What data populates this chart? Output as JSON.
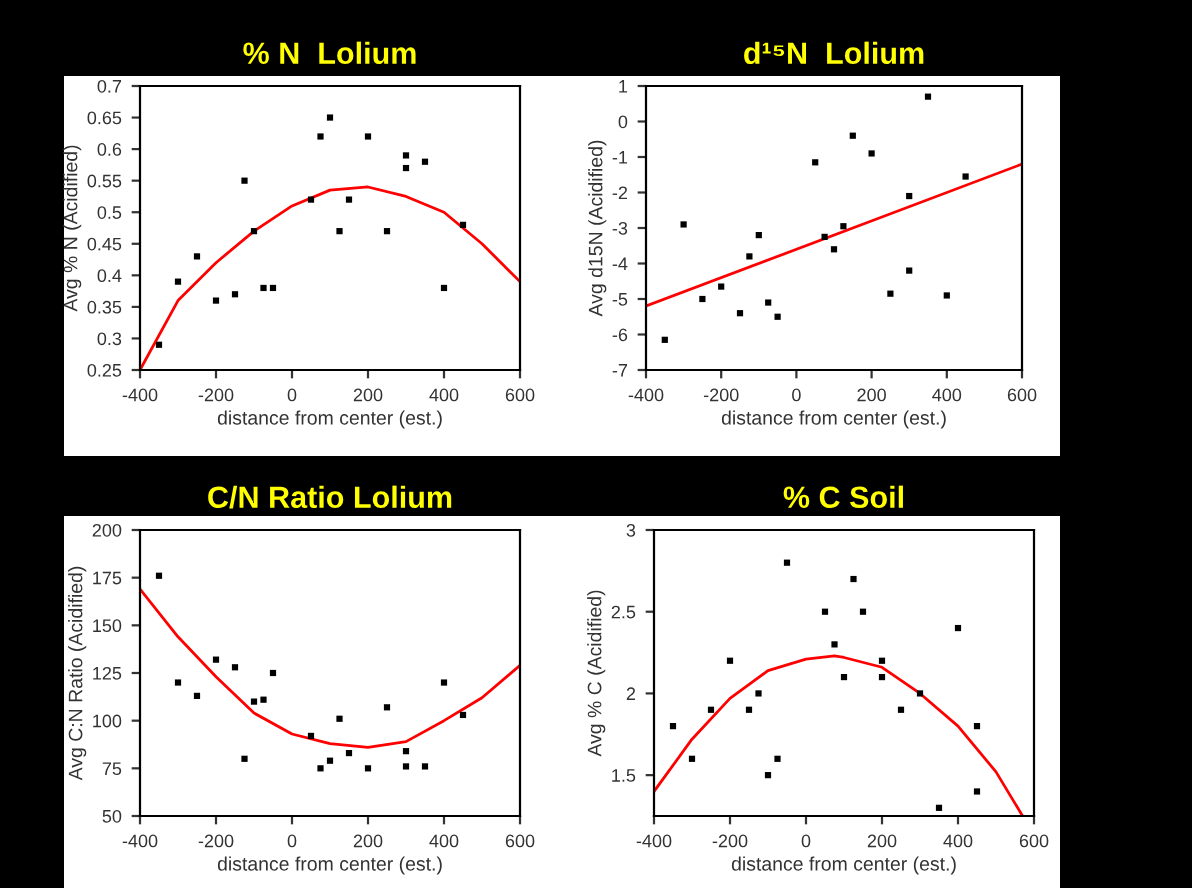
{
  "chart_data": [
    {
      "type": "scatter",
      "title": "% N  Lolium",
      "xlabel": "distance from center (est.)",
      "ylabel": "Avg % N (Acidified)",
      "xlim": [
        -400,
        600
      ],
      "xticks": [
        -400,
        -200,
        0,
        200,
        400,
        600
      ],
      "ylim": [
        0.25,
        0.7
      ],
      "yticks": [
        0.25,
        0.3,
        0.35,
        0.4,
        0.45,
        0.5,
        0.55,
        0.6,
        0.65,
        0.7
      ],
      "grid": false,
      "legend": false,
      "series": [
        {
          "marker": "square",
          "color": "#000000",
          "x": [
            -350,
            -300,
            -250,
            -200,
            -150,
            -125,
            -100,
            -75,
            -50,
            50,
            75,
            100,
            125,
            150,
            200,
            250,
            300,
            300,
            350,
            400,
            450
          ],
          "values": [
            0.29,
            0.39,
            0.43,
            0.36,
            0.37,
            0.55,
            0.47,
            0.38,
            0.38,
            0.52,
            0.62,
            0.65,
            0.47,
            0.52,
            0.62,
            0.47,
            0.59,
            0.57,
            0.58,
            0.38,
            0.48
          ]
        },
        {
          "type": "line",
          "marker": "none",
          "color": "#ff0000",
          "x": [
            -400,
            -300,
            -200,
            -100,
            0,
            100,
            200,
            300,
            400,
            500,
            600
          ],
          "values": [
            0.25,
            0.36,
            0.42,
            0.47,
            0.51,
            0.535,
            0.54,
            0.525,
            0.5,
            0.45,
            0.39
          ]
        }
      ]
    },
    {
      "type": "scatter",
      "title": "d¹⁵N  Lolium",
      "xlabel": "distance from center (est.)",
      "ylabel": "Avg d15N (Acidified)",
      "xlim": [
        -400,
        600
      ],
      "xticks": [
        -400,
        -200,
        0,
        200,
        400,
        600
      ],
      "ylim": [
        -7,
        1
      ],
      "yticks": [
        -7,
        -6,
        -5,
        -4,
        -3,
        -2,
        -1,
        0,
        1
      ],
      "grid": false,
      "legend": false,
      "series": [
        {
          "marker": "square",
          "color": "#000000",
          "x": [
            -350,
            -300,
            -250,
            -200,
            -150,
            -125,
            -100,
            -75,
            -50,
            50,
            75,
            100,
            125,
            150,
            200,
            250,
            300,
            300,
            350,
            400,
            450
          ],
          "values": [
            -6.15,
            -2.9,
            -5.0,
            -4.65,
            -5.4,
            -3.8,
            -3.2,
            -5.1,
            -5.5,
            -1.15,
            -3.25,
            -3.6,
            -2.95,
            -0.4,
            -0.9,
            -4.85,
            -2.1,
            -4.2,
            0.7,
            -4.9,
            -1.55
          ]
        },
        {
          "type": "line",
          "marker": "none",
          "color": "#ff0000",
          "x": [
            -400,
            600
          ],
          "values": [
            -5.2,
            -1.2
          ]
        }
      ]
    },
    {
      "type": "scatter",
      "title": "C/N Ratio Lolium",
      "xlabel": "distance from center (est.)",
      "ylabel": "Avg C:N Ratio (Acidified)",
      "xlim": [
        -400,
        600
      ],
      "xticks": [
        -400,
        -200,
        0,
        200,
        400,
        600
      ],
      "ylim": [
        50,
        200
      ],
      "yticks": [
        50,
        75,
        100,
        125,
        150,
        175,
        200
      ],
      "grid": false,
      "legend": false,
      "series": [
        {
          "marker": "square",
          "color": "#000000",
          "x": [
            -350,
            -300,
            -250,
            -200,
            -150,
            -125,
            -100,
            -75,
            -50,
            50,
            75,
            100,
            125,
            150,
            200,
            250,
            300,
            300,
            350,
            400,
            450
          ],
          "values": [
            176,
            120,
            113,
            132,
            128,
            80,
            110,
            111,
            125,
            92,
            75,
            79,
            101,
            83,
            75,
            107,
            84,
            76,
            76,
            120,
            103
          ]
        },
        {
          "type": "line",
          "marker": "none",
          "color": "#ff0000",
          "x": [
            -400,
            -300,
            -200,
            -100,
            0,
            100,
            200,
            300,
            400,
            500,
            600
          ],
          "values": [
            169,
            144,
            123,
            104,
            93,
            88,
            86,
            89,
            100,
            112,
            129
          ]
        }
      ]
    },
    {
      "type": "scatter",
      "title": "% C Soil",
      "xlabel": "distance from center (est.)",
      "ylabel": "Avg % C (Acidified)",
      "xlim": [
        -400,
        600
      ],
      "xticks": [
        -400,
        -200,
        0,
        200,
        400,
        600
      ],
      "ylim": [
        1.25,
        3
      ],
      "yticks": [
        1.5,
        2,
        2.5,
        3
      ],
      "grid": false,
      "legend": false,
      "series": [
        {
          "marker": "square",
          "color": "#000000",
          "x": [
            -350,
            -300,
            -250,
            -200,
            -150,
            -125,
            -100,
            -75,
            -50,
            50,
            75,
            100,
            125,
            150,
            200,
            200,
            250,
            300,
            350,
            400,
            450,
            450
          ],
          "values": [
            1.8,
            1.6,
            1.9,
            2.2,
            1.9,
            2.0,
            1.5,
            1.6,
            2.8,
            2.5,
            2.3,
            2.1,
            2.7,
            2.5,
            2.2,
            2.1,
            1.9,
            2.0,
            1.3,
            2.4,
            1.8,
            1.4
          ]
        },
        {
          "type": "line",
          "marker": "none",
          "color": "#ff0000",
          "x": [
            -400,
            -300,
            -200,
            -100,
            0,
            75,
            100,
            200,
            300,
            400,
            500,
            570
          ],
          "values": [
            1.4,
            1.72,
            1.97,
            2.14,
            2.21,
            2.23,
            2.22,
            2.16,
            2.0,
            1.8,
            1.52,
            1.25
          ]
        }
      ]
    }
  ]
}
